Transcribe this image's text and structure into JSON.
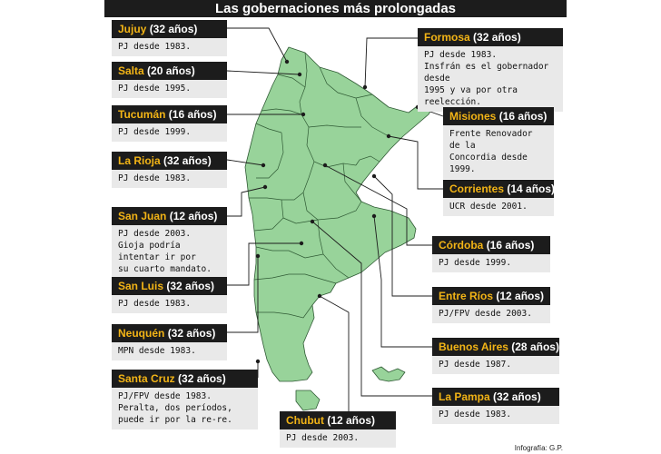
{
  "title": "Las gobernaciones más prolongadas",
  "credit": "Infografía: G.P.",
  "colors": {
    "map_fill": "#98d39a",
    "map_stroke": "#2f5a34",
    "header_bg": "#1c1c1c",
    "name": "#f2b416",
    "desc_bg": "#e9e9e9"
  },
  "callouts": [
    {
      "name": "Jujuy",
      "years": "(32 años)",
      "desc": "PJ desde 1983."
    },
    {
      "name": "Salta",
      "years": "(20 años)",
      "desc": "PJ desde 1995."
    },
    {
      "name": "Tucumán",
      "years": "(16 años)",
      "desc": "PJ desde 1999."
    },
    {
      "name": "La Rioja",
      "years": "(32 años)",
      "desc": "PJ desde 1983."
    },
    {
      "name": "San Juan",
      "years": "(12 años)",
      "desc": "PJ desde 2003.\nGioja podría intentar ir por\nsu cuarto mandato."
    },
    {
      "name": "San Luis",
      "years": "(32 años)",
      "desc": "PJ desde 1983."
    },
    {
      "name": "Neuquén",
      "years": "(32 años)",
      "desc": "MPN desde 1983."
    },
    {
      "name": "Santa Cruz",
      "years": "(32 años)",
      "desc": "PJ/FPV desde 1983.\nPeralta, dos períodos,\npuede ir por la re-re."
    },
    {
      "name": "Chubut",
      "years": "(12 años)",
      "desc": "PJ desde 2003."
    },
    {
      "name": "Formosa",
      "years": "(32 años)",
      "desc": "PJ desde 1983.\nInsfrán es el gobernador desde\n1995 y va por otra reelección."
    },
    {
      "name": "Misiones",
      "years": "(16 años)",
      "desc": "Frente Renovador de la\nConcordia desde 1999."
    },
    {
      "name": "Corrientes",
      "years": "(14 años)",
      "desc": "UCR desde 2001."
    },
    {
      "name": "Córdoba",
      "years": "(16 años)",
      "desc": "PJ desde 1999."
    },
    {
      "name": "Entre Ríos",
      "years": "(12 años)",
      "desc": "PJ/FPV desde 2003."
    },
    {
      "name": "Buenos Aires",
      "years": "(28 años)",
      "desc": "PJ desde 1987."
    },
    {
      "name": "La Pampa",
      "years": "(32 años)",
      "desc": "PJ desde 1983."
    }
  ]
}
